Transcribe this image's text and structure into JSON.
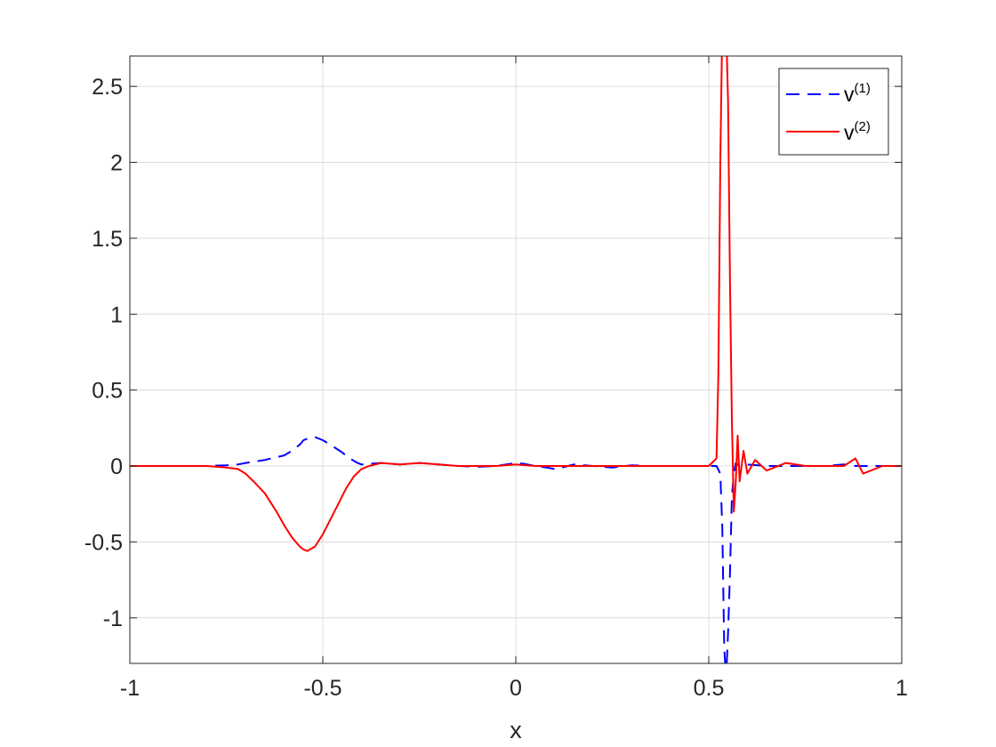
{
  "chart_data": {
    "type": "line",
    "title": "",
    "xlabel": "x",
    "ylabel": "",
    "xlim": [
      -1,
      1
    ],
    "ylim": [
      -1.3,
      2.7
    ],
    "xticks": [
      -1,
      -0.5,
      0,
      0.5,
      1
    ],
    "xtick_labels": [
      "-1",
      "-0.5",
      "0",
      "0.5",
      "1"
    ],
    "yticks": [
      -1,
      -0.5,
      0,
      0.5,
      1,
      1.5,
      2,
      2.5
    ],
    "ytick_labels": [
      "-1",
      "-0.5",
      "0",
      "0.5",
      "1",
      "1.5",
      "2",
      "2.5"
    ],
    "grid": true,
    "legend_position": "top-right",
    "series": [
      {
        "name": "v",
        "name_superscript": "(1)",
        "color": "#0000ff",
        "style": "dashed",
        "x": [
          -1.0,
          -0.9,
          -0.8,
          -0.75,
          -0.72,
          -0.7,
          -0.65,
          -0.6,
          -0.58,
          -0.56,
          -0.55,
          -0.54,
          -0.52,
          -0.5,
          -0.48,
          -0.45,
          -0.43,
          -0.41,
          -0.4,
          -0.38,
          -0.35,
          -0.3,
          -0.25,
          -0.2,
          -0.15,
          -0.1,
          -0.05,
          0.0,
          0.02,
          0.05,
          0.08,
          0.1,
          0.12,
          0.15,
          0.2,
          0.25,
          0.3,
          0.35,
          0.4,
          0.45,
          0.5,
          0.52,
          0.53,
          0.535,
          0.54,
          0.545,
          0.55,
          0.555,
          0.56,
          0.565,
          0.57,
          0.58,
          0.6,
          0.65,
          0.7,
          0.75,
          0.8,
          0.85,
          0.88,
          0.9,
          0.95,
          1.0
        ],
        "y": [
          0.0,
          0.0,
          0.0,
          0.005,
          0.01,
          0.02,
          0.04,
          0.07,
          0.1,
          0.14,
          0.17,
          0.18,
          0.19,
          0.17,
          0.14,
          0.09,
          0.05,
          0.02,
          0.01,
          0.015,
          0.02,
          0.01,
          0.02,
          0.01,
          0.0,
          -0.005,
          0.0,
          0.02,
          0.015,
          0.0,
          -0.01,
          -0.02,
          -0.01,
          0.01,
          0.0,
          -0.01,
          0.005,
          0.0,
          0.0,
          0.0,
          0.0,
          0.0,
          -0.05,
          -0.4,
          -1.2,
          -1.4,
          -1.1,
          -0.7,
          -0.2,
          -0.05,
          0.02,
          0.0,
          0.01,
          0.0,
          0.0,
          0.0,
          0.0,
          0.01,
          0.0,
          0.0,
          0.0,
          0.0
        ]
      },
      {
        "name": "v",
        "name_superscript": "(2)",
        "color": "#ff0000",
        "style": "solid",
        "x": [
          -1.0,
          -0.9,
          -0.8,
          -0.75,
          -0.72,
          -0.7,
          -0.68,
          -0.65,
          -0.62,
          -0.6,
          -0.58,
          -0.56,
          -0.55,
          -0.54,
          -0.52,
          -0.5,
          -0.48,
          -0.46,
          -0.44,
          -0.42,
          -0.4,
          -0.38,
          -0.35,
          -0.3,
          -0.25,
          -0.2,
          -0.15,
          -0.1,
          -0.05,
          0.0,
          0.05,
          0.1,
          0.15,
          0.2,
          0.25,
          0.3,
          0.35,
          0.4,
          0.45,
          0.5,
          0.52,
          0.525,
          0.53,
          0.535,
          0.54,
          0.545,
          0.55,
          0.555,
          0.56,
          0.565,
          0.57,
          0.575,
          0.58,
          0.59,
          0.6,
          0.62,
          0.65,
          0.7,
          0.75,
          0.8,
          0.85,
          0.88,
          0.9,
          0.95,
          1.0
        ],
        "y": [
          0.0,
          0.0,
          0.0,
          -0.01,
          -0.02,
          -0.05,
          -0.1,
          -0.18,
          -0.3,
          -0.39,
          -0.47,
          -0.53,
          -0.55,
          -0.56,
          -0.53,
          -0.45,
          -0.35,
          -0.25,
          -0.15,
          -0.07,
          -0.02,
          0.0,
          0.02,
          0.01,
          0.02,
          0.01,
          0.0,
          0.0,
          0.0,
          0.01,
          0.0,
          0.0,
          0.0,
          0.0,
          0.0,
          0.0,
          0.0,
          0.0,
          0.0,
          0.0,
          0.05,
          0.6,
          2.0,
          2.9,
          3.1,
          2.9,
          2.4,
          1.2,
          0.3,
          -0.3,
          -0.1,
          0.2,
          -0.1,
          0.1,
          -0.05,
          0.04,
          -0.03,
          0.02,
          0.0,
          0.0,
          0.0,
          0.05,
          -0.05,
          0.0,
          0.0
        ]
      }
    ]
  }
}
